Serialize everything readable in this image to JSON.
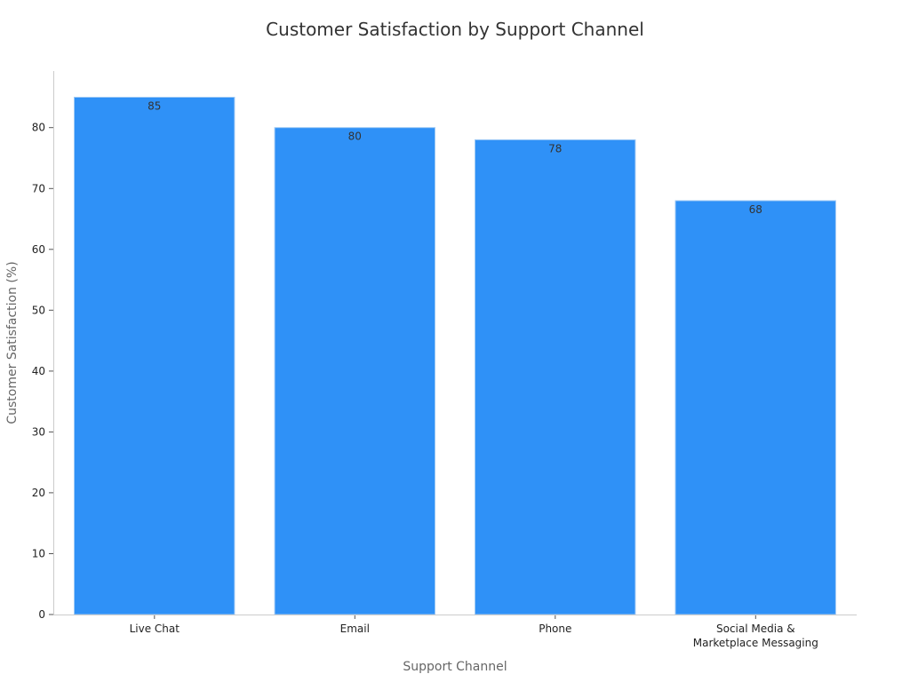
{
  "chart_data": {
    "type": "bar",
    "title": "Customer Satisfaction by Support Channel",
    "xlabel": "Support Channel",
    "ylabel": "Customer Satisfaction (%)",
    "categories": [
      [
        "Live Chat"
      ],
      [
        "Email"
      ],
      [
        "Phone"
      ],
      [
        "Social Media &",
        "Marketplace Messaging"
      ]
    ],
    "values": [
      85,
      80,
      78,
      68
    ],
    "value_labels": [
      "85",
      "80",
      "78",
      "68"
    ],
    "yticks": [
      0,
      10,
      20,
      30,
      40,
      50,
      60,
      70,
      80
    ],
    "ytick_labels": [
      "0",
      "10",
      "20",
      "30",
      "40",
      "50",
      "60",
      "70",
      "80"
    ],
    "ylim": [
      0,
      89.3
    ],
    "bar_color": "#2f91f7",
    "grid": false,
    "legend": "none"
  }
}
